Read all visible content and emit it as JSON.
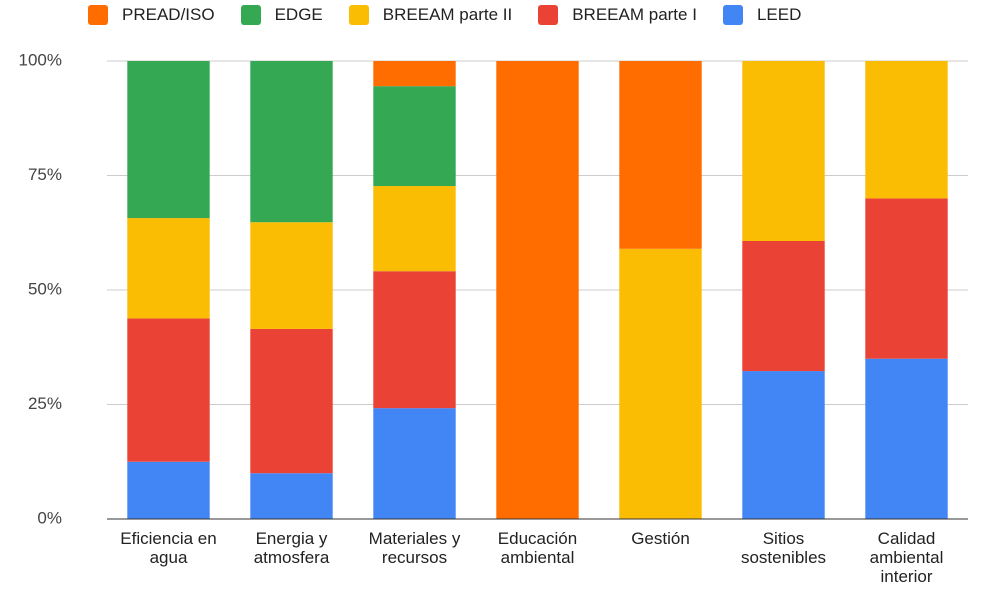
{
  "chart_data": {
    "type": "stacked_bar_100",
    "categories": [
      "Eficiencia en agua",
      "Energia y atmosfera",
      "Materiales y recursos",
      "Educación ambiental",
      "Gestión",
      "Sitios sostenibles",
      "Calidad ambiental interior"
    ],
    "series": [
      {
        "name": "PREAD/ISO",
        "color": "#ff6d01",
        "values": [
          0,
          0,
          5.5,
          100,
          41,
          0,
          0
        ]
      },
      {
        "name": "EDGE",
        "color": "#34a853",
        "values": [
          34.3,
          35.2,
          21.8,
          0,
          0,
          0,
          0
        ]
      },
      {
        "name": "BREEAM parte II",
        "color": "#fbbc04",
        "values": [
          21.9,
          23.3,
          18.6,
          0,
          59,
          39.3,
          30
        ]
      },
      {
        "name": "BREEAM parte I",
        "color": "#ea4335",
        "values": [
          31.3,
          31.5,
          29.9,
          0,
          0,
          28.4,
          35
        ]
      },
      {
        "name": "LEED",
        "color": "#4285f4",
        "values": [
          12.5,
          10,
          24.2,
          0,
          0,
          32.3,
          35
        ]
      }
    ],
    "ylim": [
      0,
      100
    ],
    "yticks": [
      {
        "value": 0,
        "label": "0%"
      },
      {
        "value": 25,
        "label": "25%"
      },
      {
        "value": 50,
        "label": "50%"
      },
      {
        "value": 75,
        "label": "75%"
      },
      {
        "value": 100,
        "label": "100%"
      }
    ],
    "grid": true,
    "legend": "top"
  }
}
